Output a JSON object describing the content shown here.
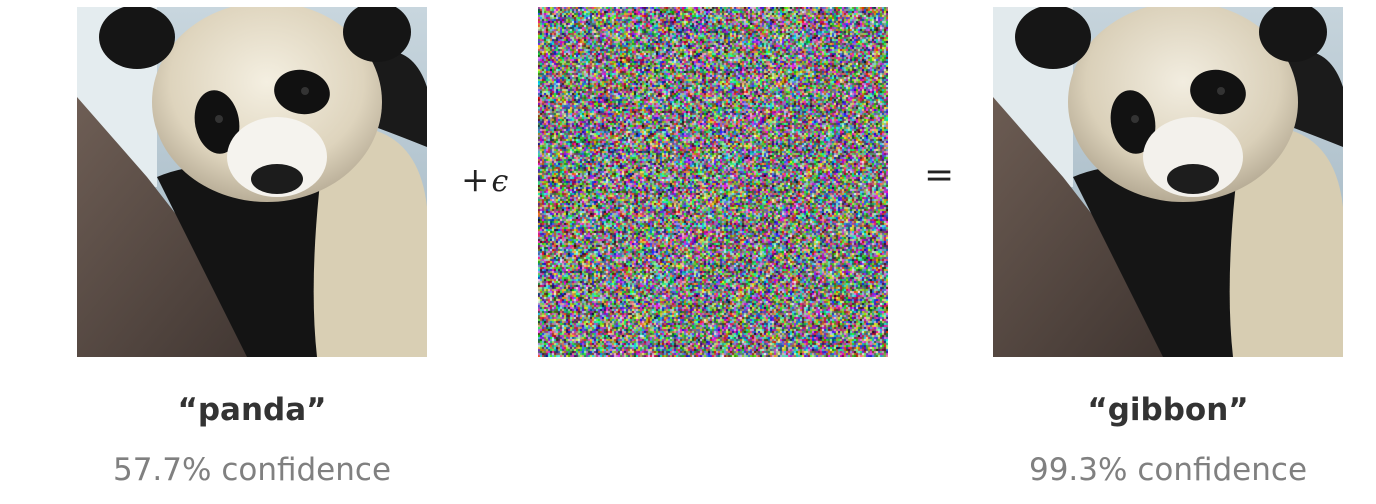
{
  "left": {
    "label": "“panda”",
    "confidence": "57.7% confidence"
  },
  "operator_plus": "+",
  "epsilon": "ϵ",
  "operator_equals": "=",
  "right": {
    "label": "“gibbon”",
    "confidence": "99.3% confidence"
  },
  "colors": {
    "class_label": "#333333",
    "confidence": "#808080",
    "background": "#ffffff"
  }
}
